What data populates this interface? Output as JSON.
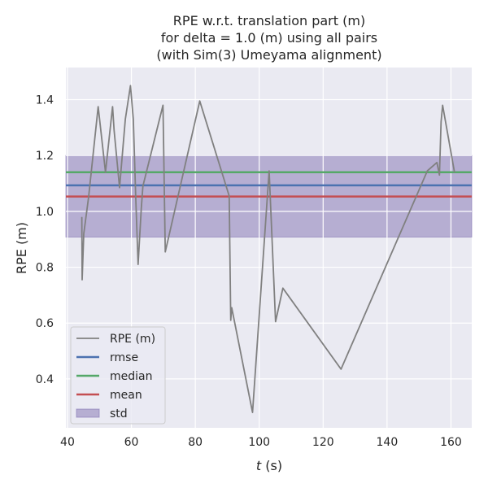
{
  "chart_data": {
    "type": "line",
    "title": [
      "RPE w.r.t. translation part (m)",
      "for delta = 1.0 (m) using all pairs",
      "(with Sim(3) Umeyama alignment)"
    ],
    "xlabel_italic": "t",
    "xlabel_unit": " (s)",
    "ylabel": "RPE (m)",
    "xlim": [
      39.5,
      166.5
    ],
    "ylim": [
      0.225,
      1.515
    ],
    "xticks": [
      40,
      60,
      80,
      100,
      120,
      140,
      160
    ],
    "yticks": [
      0.4,
      0.6,
      0.8,
      1.0,
      1.2,
      1.4
    ],
    "ytick_labels": [
      "0.4",
      "0.6",
      "0.8",
      "1.0",
      "1.2",
      "1.4"
    ],
    "grid": true,
    "legend_position": "lower-left",
    "series": [
      {
        "name": "RPE (m)",
        "color": "#808080",
        "x": [
          44.5,
          44.6,
          45.1,
          46.6,
          49.6,
          51.9,
          54.1,
          54.6,
          56.3,
          58.1,
          59.7,
          60.6,
          61.4,
          62.1,
          63.1,
          63.6,
          69.9,
          70.6,
          81.4,
          90.6,
          91.1,
          91.4,
          97.9,
          103.1,
          105.1,
          107.4,
          125.6,
          152.6,
          155.6,
          156.4,
          156.9,
          157.4,
          161.1
        ],
        "y": [
          0.98,
          0.755,
          0.92,
          1.05,
          1.375,
          1.14,
          1.375,
          1.29,
          1.085,
          1.33,
          1.45,
          1.33,
          1.04,
          0.81,
          1.01,
          1.09,
          1.38,
          0.855,
          1.395,
          1.055,
          0.61,
          0.655,
          0.28,
          1.145,
          0.605,
          0.725,
          0.435,
          1.145,
          1.175,
          1.13,
          1.32,
          1.38,
          1.14
        ]
      }
    ],
    "stats": [
      {
        "name": "rmse",
        "value": 1.093,
        "color": "#4c72b0"
      },
      {
        "name": "median",
        "value": 1.14,
        "color": "#55a868"
      },
      {
        "name": "mean",
        "value": 1.053,
        "color": "#c44e52"
      }
    ],
    "std": {
      "name": "std",
      "lower": 0.908,
      "upper": 1.2,
      "color": "#8172b2"
    }
  },
  "colors": {
    "plot_bg": "#eaeaf2",
    "grid": "#ffffff"
  }
}
